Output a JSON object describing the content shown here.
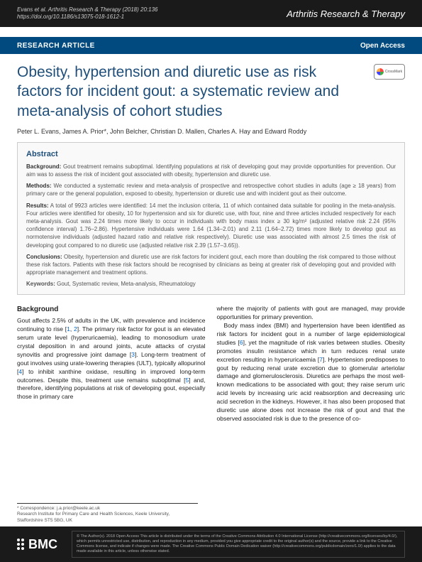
{
  "header": {
    "citation": "Evans et al. Arthritis Research & Therapy  (2018) 20:136",
    "doi": "https://doi.org/10.1186/s13075-018-1612-1",
    "journal": "Arthritis Research & Therapy"
  },
  "labels": {
    "research": "RESEARCH ARTICLE",
    "openaccess": "Open Access",
    "crossmark": "CrossMark"
  },
  "title": "Obesity, hypertension and diuretic use as risk factors for incident gout: a systematic review and meta-analysis of cohort studies",
  "authors": "Peter L. Evans, James A. Prior*, John Belcher, Christian D. Mallen, Charles A. Hay and Edward Roddy",
  "abstract": {
    "heading": "Abstract",
    "background_label": "Background:",
    "background": " Gout treatment remains suboptimal. Identifying populations at risk of developing gout may provide opportunities for prevention. Our aim was to assess the risk of incident gout associated with obesity, hypertension and diuretic use.",
    "methods_label": "Methods:",
    "methods": " We conducted a systematic review and meta-analysis of prospective and retrospective cohort studies in adults (age ≥ 18 years) from primary care or the general population, exposed to obesity, hypertension or diuretic use and with incident gout as their outcome.",
    "results_label": "Results:",
    "results": " A total of 9923 articles were identified: 14 met the inclusion criteria, 11 of which contained data suitable for pooling in the meta-analysis. Four articles were identified for obesity, 10 for hypertension and six for diuretic use, with four, nine and three articles included respectively for each meta-analysis. Gout was 2.24 times more likely to occur in individuals with body mass index ≥ 30 kg/m² (adjusted relative risk 2.24 (95% confidence interval) 1.76–2.86). Hypertensive individuals were 1.64 (1.34–2.01) and 2.11 (1.64–2.72) times more likely to develop gout as normotensive individuals (adjusted hazard ratio and relative risk respectively). Diuretic use was associated with almost 2.5 times the risk of developing gout compared to no diuretic use (adjusted relative risk 2.39 (1.57–3.65)).",
    "conclusions_label": "Conclusions:",
    "conclusions": " Obesity, hypertension and diuretic use are risk factors for incident gout, each more than doubling the risk compared to those without these risk factors. Patients with these risk factors should be recognised by clinicians as being at greater risk of developing gout and provided with appropriate management and treatment options.",
    "keywords_label": "Keywords:",
    "keywords": " Gout, Systematic review, Meta-analysis, Rheumatology"
  },
  "body": {
    "background_head": "Background",
    "col1_p1a": "Gout affects 2.5% of adults in the UK, with prevalence and incidence continuing to rise [",
    "ref1": "1",
    "col1_p1b": ", ",
    "ref2": "2",
    "col1_p1c": "]. The primary risk factor for gout is an elevated serum urate level (hyperuricaemia), leading to monosodium urate crystal deposition in and around joints, acute attacks of crystal synovitis and progressive joint damage [",
    "ref3": "3",
    "col1_p1d": "]. Long-term treatment of gout involves using urate-lowering therapies (ULT), typically allopurinol [",
    "ref4": "4",
    "col1_p1e": "] to inhibit xanthine oxidase, resulting in improved long-term outcomes. Despite this, treatment use remains suboptimal [",
    "ref5": "5",
    "col1_p1f": "] and, therefore, identifying populations at risk of developing gout, especially those in primary care",
    "col2_p1": "where the majority of patients with gout are managed, may provide opportunities for primary prevention.",
    "col2_p2a": "Body mass index (BMI) and hypertension have been identified as risk factors for incident gout in a number of large epidemiological studies [",
    "ref6": "6",
    "col2_p2b": "], yet the magnitude of risk varies between studies. Obesity promotes insulin resistance which in turn reduces renal urate excretion resulting in hyperuricaemia [",
    "ref7": "7",
    "col2_p2c": "]. Hypertension predisposes to gout by reducing renal urate excretion due to glomerular arteriolar damage and glomerulosclerosis. Diuretics are perhaps the most well-known medications to be associated with gout; they raise serum uric acid levels by increasing uric acid reabsorption and decreasing uric acid secretion in the kidneys. However, it has also been proposed that diuretic use alone does not increase the risk of gout and that the observed associated risk is due to the presence of co-"
  },
  "correspondence": {
    "line1": "* Correspondence: j.a.prior@keele.ac.uk",
    "line2": "Research Institute for Primary Care and Health Sciences, Keele University,",
    "line3": "Staffordshire ST5 5BG, UK"
  },
  "footer": {
    "logo": "BMC",
    "license": "© The Author(s). 2018 Open Access This article is distributed under the terms of the Creative Commons Attribution 4.0 International License (http://creativecommons.org/licenses/by/4.0/), which permits unrestricted use, distribution, and reproduction in any medium, provided you give appropriate credit to the original author(s) and the source, provide a link to the Creative Commons license, and indicate if changes were made. The Creative Commons Public Domain Dedication waiver (http://creativecommons.org/publicdomain/zero/1.0/) applies to the data made available in this article, unless otherwise stated."
  },
  "colors": {
    "header_bg": "#1a1a1a",
    "bar_bg": "#004a7f",
    "title_color": "#1e4e79",
    "link_color": "#0066cc"
  }
}
